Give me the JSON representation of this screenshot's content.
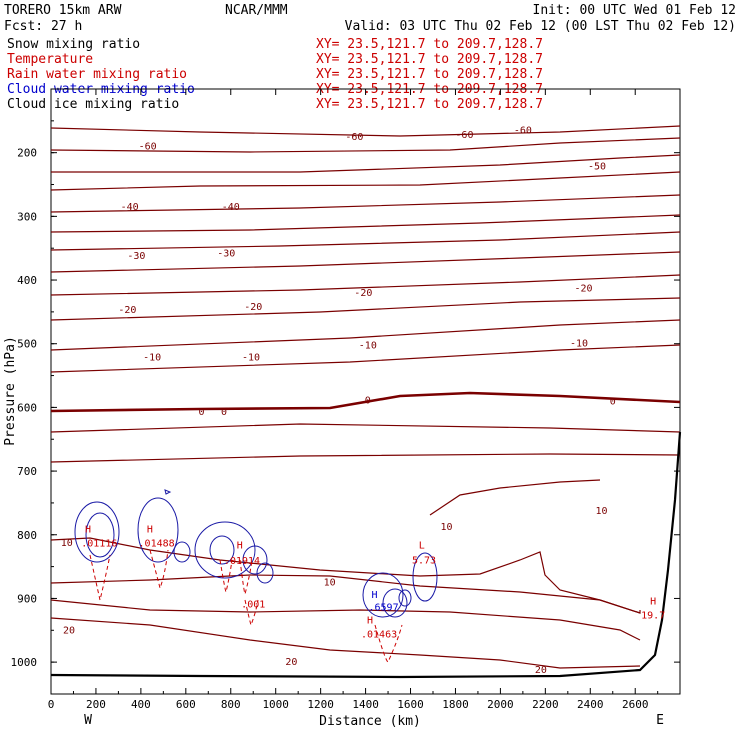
{
  "header": {
    "model": "TORERO  15km ARW",
    "center": "NCAR/MMM",
    "init": "Init: 00 UTC Wed 01 Feb 12",
    "fcst": "Fcst:   27 h",
    "valid": "Valid: 03 UTC Thu 02 Feb 12 (00 LST Thu 02 Feb 12)"
  },
  "legend": [
    {
      "label": "Snow mixing ratio",
      "xy": "XY=  23.5,121.7 to 209.7,128.7",
      "color": "#000000"
    },
    {
      "label": "Temperature",
      "xy": "XY=  23.5,121.7 to 209.7,128.7",
      "color": "#cc0000"
    },
    {
      "label": "Rain water mixing ratio",
      "xy": "XY=  23.5,121.7 to 209.7,128.7",
      "color": "#cc0000"
    },
    {
      "label": "Cloud water mixing ratio",
      "xy": "XY=  23.5,121.7 to 209.7,128.7",
      "color": "#0000cc"
    },
    {
      "label": "Cloud ice mixing ratio",
      "xy": "XY=  23.5,121.7 to 209.7,128.7",
      "color": "#000000"
    }
  ],
  "colors": {
    "temperature": "#7a0000",
    "freezing": "#7a0000",
    "rain": "#cc0000",
    "cloud_water": "#1a1aa6",
    "terrain": "#000000"
  },
  "chart_data": {
    "type": "line",
    "x_axis": {
      "label": "Distance (km)",
      "range": [
        0,
        2800
      ],
      "ticks": [
        0,
        200,
        400,
        600,
        800,
        1000,
        1200,
        1400,
        1600,
        1800,
        2000,
        2200,
        2400,
        2600
      ]
    },
    "y_axis": {
      "label": "Pressure (hPa)",
      "range": [
        1050,
        100
      ],
      "ticks": [
        200,
        300,
        400,
        500,
        600,
        700,
        800,
        900,
        1000
      ]
    },
    "x_end_labels": {
      "left": "W",
      "right": "E"
    },
    "isotherms": [
      {
        "level": -60,
        "labels": [
          {
            "x": 430,
            "p": 190
          },
          {
            "x": 1350,
            "p": 175
          },
          {
            "x": 1840,
            "p": 172
          },
          {
            "x": 2100,
            "p": 165
          }
        ]
      },
      {
        "level": -50,
        "labels": [
          {
            "x": 2430,
            "p": 222
          }
        ]
      },
      {
        "level": -40,
        "labels": [
          {
            "x": 350,
            "p": 285
          },
          {
            "x": 800,
            "p": 285
          }
        ]
      },
      {
        "level": -30,
        "labels": [
          {
            "x": 380,
            "p": 362
          },
          {
            "x": 780,
            "p": 358
          }
        ]
      },
      {
        "level": -20,
        "labels": [
          {
            "x": 340,
            "p": 447
          },
          {
            "x": 900,
            "p": 442
          },
          {
            "x": 1390,
            "p": 420
          },
          {
            "x": 2370,
            "p": 413
          }
        ]
      },
      {
        "level": -10,
        "labels": [
          {
            "x": 450,
            "p": 522
          },
          {
            "x": 890,
            "p": 522
          },
          {
            "x": 1410,
            "p": 503
          },
          {
            "x": 2350,
            "p": 500
          }
        ]
      },
      {
        "level": 0,
        "labels": [
          {
            "x": 670,
            "p": 607
          },
          {
            "x": 770,
            "p": 607
          },
          {
            "x": 1410,
            "p": 589
          },
          {
            "x": 2500,
            "p": 591
          }
        ]
      },
      {
        "level": 10,
        "labels": [
          {
            "x": 70,
            "p": 813
          },
          {
            "x": 1240,
            "p": 875
          },
          {
            "x": 1760,
            "p": 788
          },
          {
            "x": 2450,
            "p": 763
          }
        ]
      },
      {
        "level": 20,
        "labels": [
          {
            "x": 80,
            "p": 950
          },
          {
            "x": 1070,
            "p": 1000
          },
          {
            "x": 2180,
            "p": 1012
          }
        ]
      }
    ],
    "markers": [
      {
        "text": "H",
        "x": 165,
        "p": 790,
        "color": "#cc0000"
      },
      {
        "text": ".01116",
        "x": 215,
        "p": 812,
        "color": "#cc0000"
      },
      {
        "text": "H",
        "x": 440,
        "p": 790,
        "color": "#cc0000"
      },
      {
        "text": ".01488",
        "x": 470,
        "p": 812,
        "color": "#cc0000"
      },
      {
        "text": "H",
        "x": 840,
        "p": 815,
        "color": "#cc0000"
      },
      {
        "text": ".01914",
        "x": 850,
        "p": 840,
        "color": "#cc0000"
      },
      {
        "text": ".001",
        "x": 900,
        "p": 908,
        "color": "#cc0000"
      },
      {
        "text": "L",
        "x": 1650,
        "p": 815,
        "color": "#cc0000"
      },
      {
        "text": "5.73",
        "x": 1660,
        "p": 839,
        "color": "#cc0000"
      },
      {
        "text": "H",
        "x": 1440,
        "p": 893,
        "color": "#0000cc"
      },
      {
        "text": ".6597",
        "x": 1480,
        "p": 913,
        "color": "#0000cc"
      },
      {
        "text": "H",
        "x": 1420,
        "p": 933,
        "color": "#cc0000"
      },
      {
        "text": ".01463",
        "x": 1460,
        "p": 955,
        "color": "#cc0000"
      },
      {
        "text": "H",
        "x": 2680,
        "p": 903,
        "color": "#cc0000"
      },
      {
        "text": "19.7",
        "x": 2680,
        "p": 925,
        "color": "#cc0000"
      }
    ]
  }
}
